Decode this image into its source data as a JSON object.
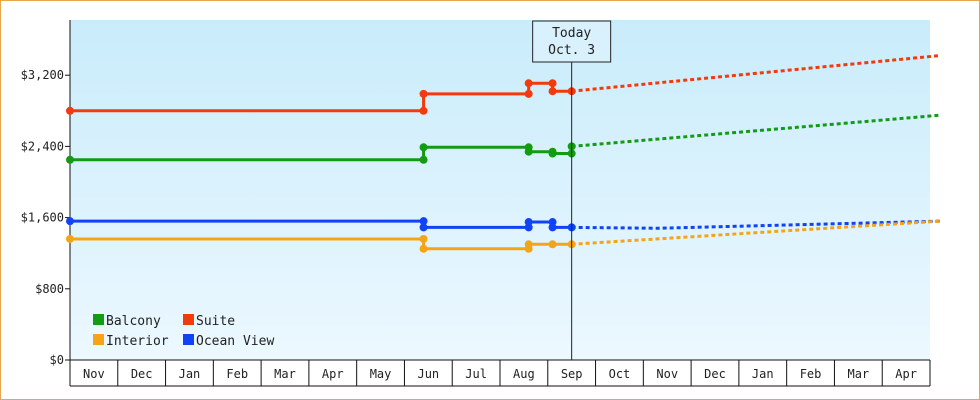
{
  "chart_data": {
    "type": "line",
    "title": "",
    "xlabel": "",
    "ylabel": "",
    "ylim": [
      0,
      3800
    ],
    "yticks": [
      {
        "value": 0,
        "label": "$0"
      },
      {
        "value": 800,
        "label": "$800"
      },
      {
        "value": 1600,
        "label": "$1,600"
      },
      {
        "value": 2400,
        "label": "$2,400"
      },
      {
        "value": 3200,
        "label": "$3,200"
      }
    ],
    "month_labels": [
      "Nov",
      "Dec",
      "Jan",
      "Feb",
      "Mar",
      "Apr",
      "May",
      "Jun",
      "Jul",
      "Aug",
      "Sep",
      "Oct",
      "Nov",
      "Dec",
      "Jan",
      "Feb",
      "Mar",
      "Apr"
    ],
    "today": {
      "label_line1": "Today",
      "label_line2": "Oct. 3",
      "month": 10.5
    },
    "grid": false,
    "legend": {
      "placement": "bottom-left"
    },
    "background": {
      "top": "#c9ecfb",
      "bottom": "#ecf8ff"
    },
    "series": [
      {
        "name": "Suite",
        "color": "#f23a0c",
        "points": [
          [
            0,
            2800
          ],
          [
            7.4,
            2800
          ],
          [
            7.4,
            2990
          ],
          [
            9.6,
            2990
          ],
          [
            9.6,
            3110
          ],
          [
            10.1,
            3110
          ],
          [
            10.1,
            3020
          ],
          [
            10.5,
            3020
          ]
        ],
        "markers": [
          [
            0,
            2800
          ],
          [
            7.4,
            2800
          ],
          [
            7.4,
            2990
          ],
          [
            9.6,
            2990
          ],
          [
            9.6,
            3110
          ],
          [
            10.1,
            3110
          ],
          [
            10.1,
            3020
          ],
          [
            10.5,
            3020
          ]
        ],
        "forecast": [
          [
            10.5,
            3020
          ],
          [
            18.2,
            3420
          ]
        ]
      },
      {
        "name": "Balcony",
        "color": "#149b14",
        "points": [
          [
            0,
            2250
          ],
          [
            7.4,
            2250
          ],
          [
            7.4,
            2390
          ],
          [
            9.6,
            2390
          ],
          [
            9.6,
            2340
          ],
          [
            10.1,
            2340
          ],
          [
            10.1,
            2320
          ],
          [
            10.5,
            2320
          ]
        ],
        "markers": [
          [
            0,
            2250
          ],
          [
            7.4,
            2250
          ],
          [
            7.4,
            2390
          ],
          [
            9.6,
            2390
          ],
          [
            9.6,
            2340
          ],
          [
            10.1,
            2340
          ],
          [
            10.1,
            2320
          ],
          [
            10.5,
            2320
          ],
          [
            10.5,
            2400
          ]
        ],
        "forecast": [
          [
            10.5,
            2400
          ],
          [
            18.2,
            2750
          ]
        ]
      },
      {
        "name": "Ocean View",
        "color": "#1043f5",
        "points": [
          [
            0,
            1560
          ],
          [
            7.4,
            1560
          ],
          [
            7.4,
            1490
          ],
          [
            9.6,
            1490
          ],
          [
            9.6,
            1550
          ],
          [
            10.1,
            1550
          ],
          [
            10.1,
            1490
          ],
          [
            10.5,
            1490
          ]
        ],
        "markers": [
          [
            0,
            1560
          ],
          [
            7.4,
            1560
          ],
          [
            7.4,
            1490
          ],
          [
            9.6,
            1490
          ],
          [
            9.6,
            1550
          ],
          [
            10.1,
            1550
          ],
          [
            10.1,
            1490
          ],
          [
            10.5,
            1490
          ]
        ],
        "forecast": [
          [
            10.5,
            1490
          ],
          [
            12.3,
            1480
          ],
          [
            18.2,
            1560
          ]
        ]
      },
      {
        "name": "Interior",
        "color": "#f5a418",
        "points": [
          [
            0,
            1360
          ],
          [
            7.4,
            1360
          ],
          [
            7.4,
            1250
          ],
          [
            9.6,
            1250
          ],
          [
            9.6,
            1300
          ],
          [
            10.1,
            1300
          ],
          [
            10.5,
            1300
          ]
        ],
        "markers": [
          [
            0,
            1360
          ],
          [
            7.4,
            1360
          ],
          [
            7.4,
            1250
          ],
          [
            9.6,
            1250
          ],
          [
            9.6,
            1300
          ],
          [
            10.1,
            1300
          ],
          [
            10.5,
            1300
          ]
        ],
        "forecast": [
          [
            10.5,
            1300
          ],
          [
            18.2,
            1560
          ]
        ]
      }
    ],
    "legend_items": [
      {
        "name": "Balcony",
        "color": "#149b14"
      },
      {
        "name": "Suite",
        "color": "#f23a0c"
      },
      {
        "name": "Interior",
        "color": "#f5a418"
      },
      {
        "name": "Ocean View",
        "color": "#1043f5"
      }
    ]
  }
}
